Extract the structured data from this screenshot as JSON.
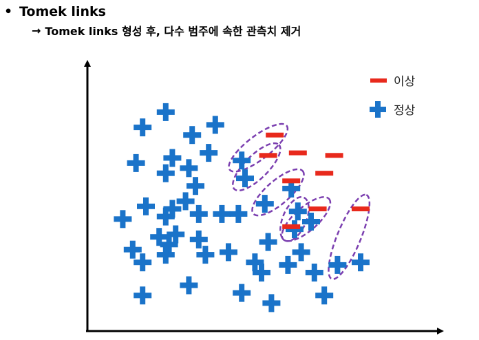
{
  "header": {
    "bullet": "•",
    "title": "Tomek links",
    "arrow": "→",
    "subtitle": "Tomek links 형성 후, 다수 범주에 속한 관측치 제거"
  },
  "legend": {
    "minority_label": "이상",
    "majority_label": "정상",
    "minority_color": "#e8291c",
    "majority_color": "#1a73c9"
  },
  "colors": {
    "link_ellipse": "#7b3fb0",
    "axis": "#000000"
  },
  "chart_data": {
    "type": "scatter",
    "title": "",
    "xlabel": "",
    "ylabel": "",
    "xlim": [
      0,
      100
    ],
    "ylim": [
      0,
      100
    ],
    "series": [
      {
        "name": "정상",
        "marker": "plus",
        "points": [
          [
            21,
            83
          ],
          [
            14,
            77
          ],
          [
            29,
            74
          ],
          [
            36,
            78
          ],
          [
            12,
            63
          ],
          [
            23,
            65
          ],
          [
            21,
            59
          ],
          [
            28,
            61
          ],
          [
            34,
            67
          ],
          [
            44,
            64
          ],
          [
            30,
            54
          ],
          [
            45,
            57
          ],
          [
            15,
            46
          ],
          [
            21,
            42
          ],
          [
            23,
            45
          ],
          [
            27,
            48
          ],
          [
            8,
            41
          ],
          [
            31,
            43
          ],
          [
            38,
            43
          ],
          [
            43,
            43
          ],
          [
            19,
            34
          ],
          [
            24,
            35
          ],
          [
            11,
            29
          ],
          [
            22,
            31
          ],
          [
            31,
            33
          ],
          [
            14,
            24
          ],
          [
            21,
            27
          ],
          [
            33,
            27
          ],
          [
            40,
            28
          ],
          [
            48,
            24
          ],
          [
            52,
            32
          ],
          [
            60,
            37
          ],
          [
            51,
            47
          ],
          [
            59,
            53
          ],
          [
            61,
            44
          ],
          [
            50,
            20
          ],
          [
            65,
            40
          ],
          [
            62,
            28
          ],
          [
            66,
            20
          ],
          [
            58,
            23
          ],
          [
            73,
            23
          ],
          [
            80,
            24
          ],
          [
            69,
            11
          ],
          [
            44,
            12
          ],
          [
            28,
            15
          ],
          [
            53,
            8
          ],
          [
            14,
            11
          ]
        ]
      },
      {
        "name": "이상",
        "marker": "minus",
        "points": [
          [
            54,
            74
          ],
          [
            52,
            66
          ],
          [
            61,
            67
          ],
          [
            72,
            66
          ],
          [
            69,
            59
          ],
          [
            59,
            56
          ],
          [
            67,
            45
          ],
          [
            59,
            38
          ],
          [
            80,
            45
          ]
        ]
      }
    ],
    "tomek_links": [
      [
        [
          44,
          64
        ],
        [
          54,
          74
        ]
      ],
      [
        [
          45,
          57
        ],
        [
          52,
          66
        ]
      ],
      [
        [
          51,
          47
        ],
        [
          59,
          56
        ]
      ],
      [
        [
          59,
          38
        ],
        [
          61,
          44
        ]
      ],
      [
        [
          60,
          37
        ],
        [
          67,
          45
        ]
      ],
      [
        [
          73,
          23
        ],
        [
          80,
          45
        ]
      ]
    ],
    "legend_position": "top-right"
  }
}
